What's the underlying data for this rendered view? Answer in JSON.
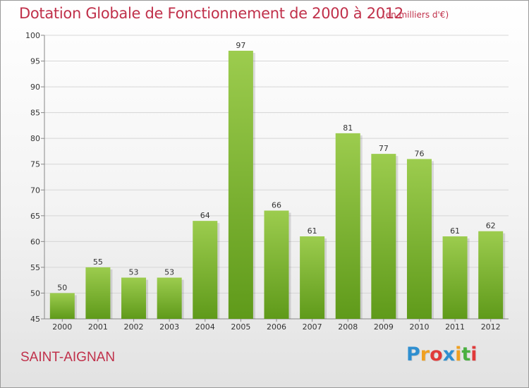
{
  "title": "Dotation Globale de Fonctionnement de 2000 à 2012",
  "subtitle": "(en milliers d'€)",
  "town": "SAINT-AIGNAN",
  "brand": {
    "letters": [
      "P",
      "r",
      "o",
      "x",
      "i",
      "t",
      "i"
    ],
    "colors": [
      "#2f8fd0",
      "#f0a020",
      "#e03a3a",
      "#2f8fd0",
      "#f0a020",
      "#4ab040",
      "#e03a3a"
    ]
  },
  "colors": {
    "title": "#c0304a",
    "bar_top": "#9ccc4e",
    "bar_bottom": "#5f9a1a",
    "axis": "#888888",
    "grid": "#d6d6d6",
    "text": "#333333"
  },
  "chart_data": {
    "type": "bar",
    "title": "Dotation Globale de Fonctionnement de 2000 à 2012",
    "subtitle": "(en milliers d'€)",
    "categories": [
      "2000",
      "2001",
      "2002",
      "2003",
      "2004",
      "2005",
      "2006",
      "2007",
      "2008",
      "2009",
      "2010",
      "2011",
      "2012"
    ],
    "values": [
      50,
      55,
      53,
      53,
      64,
      97,
      66,
      61,
      81,
      77,
      76,
      61,
      62
    ],
    "ylim": [
      45,
      100
    ],
    "yticks": [
      45,
      50,
      55,
      60,
      65,
      70,
      75,
      80,
      85,
      90,
      95,
      100
    ],
    "grid": true,
    "xlabel": "",
    "ylabel": ""
  }
}
